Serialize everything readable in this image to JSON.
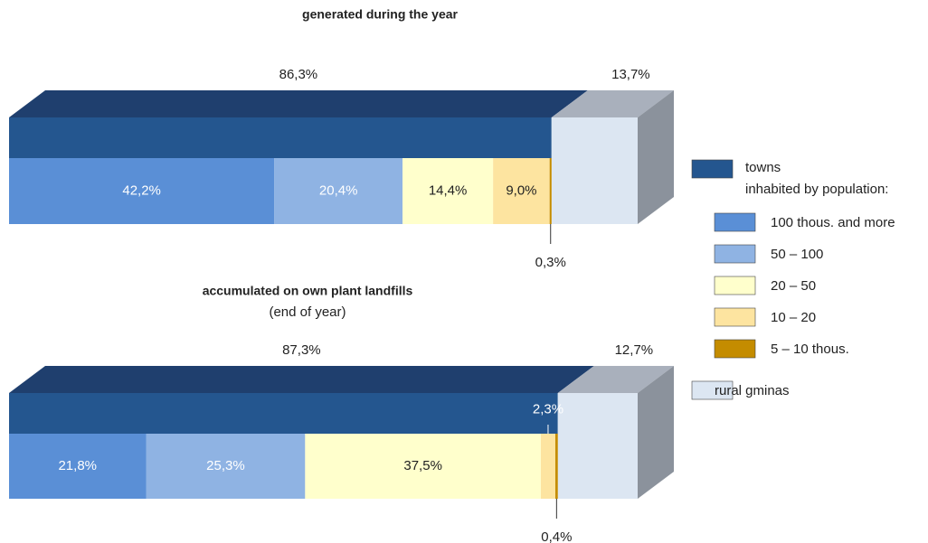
{
  "chart_data": [
    {
      "type": "bar3d",
      "title": "generated during the year",
      "totals": {
        "values": [
          86.3,
          13.7
        ],
        "value_labels": [
          "86,3%",
          "13,7%"
        ]
      },
      "segments": {
        "values": [
          42.2,
          20.4,
          14.4,
          9.0,
          0.3
        ],
        "value_labels": [
          "42,2%",
          "20,4%",
          "14,4%",
          "9,0%",
          "0,3%"
        ]
      }
    },
    {
      "type": "bar3d",
      "title": "accumulated on own plant landfills",
      "subtitle": "(end of year)",
      "totals": {
        "values": [
          87.3,
          12.7
        ],
        "value_labels": [
          "87,3%",
          "12,7%"
        ]
      },
      "segments": {
        "values": [
          21.8,
          25.3,
          37.5,
          2.3,
          0.4
        ],
        "value_labels": [
          "21,8%",
          "25,3%",
          "37,5%",
          "2,3%",
          "0,4%"
        ]
      }
    }
  ],
  "legend": {
    "subtitle": "inhabited by population:",
    "items": [
      {
        "name": "towns",
        "color": "#24568f"
      },
      {
        "name": "100 thous. and more",
        "color": "#5a8fd6"
      },
      {
        "name": "50 – 100",
        "color": "#8fb3e3"
      },
      {
        "name": "20 – 50",
        "color": "#ffffcc"
      },
      {
        "name": "10 – 20",
        "color": "#fde4a0"
      },
      {
        "name": "5 – 10 thous.",
        "color": "#c48c00"
      },
      {
        "name": "rural gminas",
        "color": "#dce6f2"
      }
    ]
  }
}
